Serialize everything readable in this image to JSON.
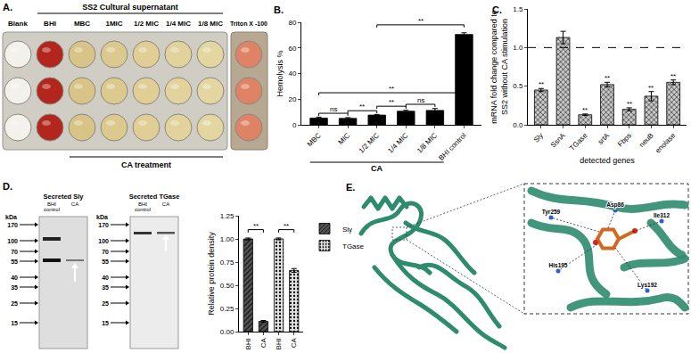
{
  "panel_a": {
    "panel": "A.",
    "header": "SS2 Cultural supernatant",
    "columns": [
      "Blank",
      "BHI",
      "MBC",
      "1MIC",
      "1/2 MIC",
      "1/4 MIC",
      "1/8 MIC",
      "Triton X -100"
    ],
    "footer": "CA treatment"
  },
  "chart_data": [
    {
      "panel": "B.",
      "type": "bar",
      "categories": [
        "MBC",
        "MIC",
        "1/2 MIC",
        "1/4 MIC",
        "1/8 MIC",
        "BHI control"
      ],
      "values": [
        5.2,
        5.0,
        7.6,
        10.6,
        11.2,
        70.5
      ],
      "errors": [
        0.8,
        0.6,
        0.5,
        0.7,
        1.5,
        1.3
      ],
      "color": "#000000",
      "ylabel": "Hemolysis %",
      "ylim": [
        0,
        80
      ],
      "yticks": [
        0,
        20,
        40,
        60,
        80
      ],
      "group_label": {
        "text": "CA",
        "from": "MBC",
        "to": "1/8 MIC"
      },
      "comparisons": [
        {
          "from": "MBC",
          "to": "MIC",
          "label": "ns",
          "y": 9
        },
        {
          "from": "MIC",
          "to": "1/2 MIC",
          "label": "**",
          "y": 11
        },
        {
          "from": "1/2 MIC",
          "to": "1/4 MIC",
          "label": "**",
          "y": 14.5
        },
        {
          "from": "1/4 MIC",
          "to": "1/8 MIC",
          "label": "ns",
          "y": 16
        },
        {
          "from": "MBC",
          "to": "BHI control",
          "label": "**",
          "y": 25
        },
        {
          "from": "1/2 MIC",
          "to": "BHI control",
          "label": "**",
          "y": 78
        }
      ]
    },
    {
      "panel": "C.",
      "type": "bar",
      "categories": [
        "Sly",
        "SsnA",
        "TGase",
        "srtA",
        "Fbps",
        "neuB",
        "enolase"
      ],
      "values": [
        0.45,
        1.13,
        0.13,
        0.52,
        0.2,
        0.37,
        0.55
      ],
      "errors": [
        0.02,
        0.08,
        0.01,
        0.03,
        0.02,
        0.06,
        0.03
      ],
      "significance": [
        "**",
        null,
        "**",
        "**",
        "**",
        "**",
        "**"
      ],
      "color": "#c8c8c8",
      "ylabel": [
        "mRNA fold change compared to",
        "SS2 without CA stimulation"
      ],
      "xlabel": "detected genes",
      "ylim": [
        0,
        1.5
      ],
      "yticks": [
        {
          "value": 0,
          "label": "0.0"
        },
        {
          "value": 0.5,
          "label": "0.5"
        },
        {
          "value": 1,
          "label": "1.0"
        },
        {
          "value": 1.5,
          "label": "1.5"
        }
      ],
      "reference_line": 1
    },
    {
      "type": "bar",
      "categories": [
        "BHI",
        "CA",
        "BHI",
        "CA"
      ],
      "series": [
        {
          "name": "Sly",
          "color": "#555555",
          "values": [
            1.0,
            0.11,
            null,
            null
          ],
          "errors": [
            0.01,
            0.01,
            null,
            null
          ]
        },
        {
          "name": "TGase",
          "color": "#e0e0e0",
          "values": [
            null,
            null,
            1.0,
            0.66
          ],
          "errors": [
            null,
            null,
            0.01,
            0.02
          ]
        }
      ],
      "ylabel": "Relative protein density",
      "ylim": [
        0,
        1.25
      ],
      "yticks": [
        {
          "value": 0,
          "label": "0.00"
        },
        0.25,
        {
          "value": 0.5,
          "label": "0.50"
        },
        0.75,
        {
          "value": 1,
          "label": "1.00"
        },
        1.25
      ],
      "legend": "right",
      "comparisons": [
        {
          "from": 0,
          "to": 1,
          "label": "**",
          "y": 1.1
        },
        {
          "from": 2,
          "to": 3,
          "label": "**",
          "y": 1.1
        }
      ]
    }
  ],
  "panel_d": {
    "panel": "D.",
    "unit": "kDa",
    "blots": [
      {
        "title": "Secreted Sly",
        "lanes": [
          "BHI control",
          "CA"
        ],
        "markers": [
          170,
          100,
          70,
          55,
          40,
          35,
          25,
          15
        ]
      },
      {
        "title": "Secreted TGase",
        "lanes": [
          "BHI control",
          "CA"
        ],
        "markers": [
          170,
          100,
          70,
          55,
          40,
          35,
          25,
          15
        ]
      }
    ]
  },
  "panel_e": {
    "panel": "E.",
    "residues": [
      "Tyr259",
      "Asp86",
      "Ile312",
      "His195",
      "Lys192"
    ]
  }
}
